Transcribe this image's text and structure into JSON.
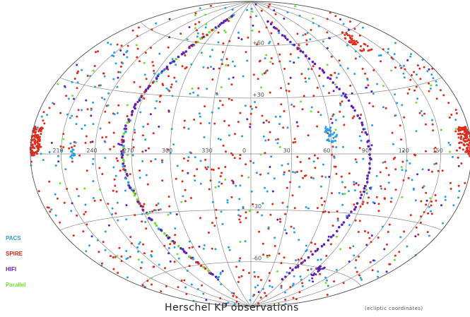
{
  "map": {
    "title": "Herschel KP observations",
    "subtitle": "(ecliptic coordinates)",
    "projection": "Hammer-Aitoff all-sky",
    "grid": true,
    "longitude_labels": [
      "210",
      "240",
      "270",
      "300",
      "330",
      "0",
      "30",
      "60",
      "90",
      "120",
      "150"
    ],
    "latitude_labels": [
      "+60",
      "+30",
      "-30",
      "-60"
    ]
  },
  "legend": [
    {
      "label": "PACS",
      "color": "#2a9ee6"
    },
    {
      "label": "SPIRE",
      "color": "#e22a1a"
    },
    {
      "label": "HIFI",
      "color": "#5b1fbf"
    },
    {
      "label": "Parallel",
      "color": "#6fe02c"
    }
  ]
}
